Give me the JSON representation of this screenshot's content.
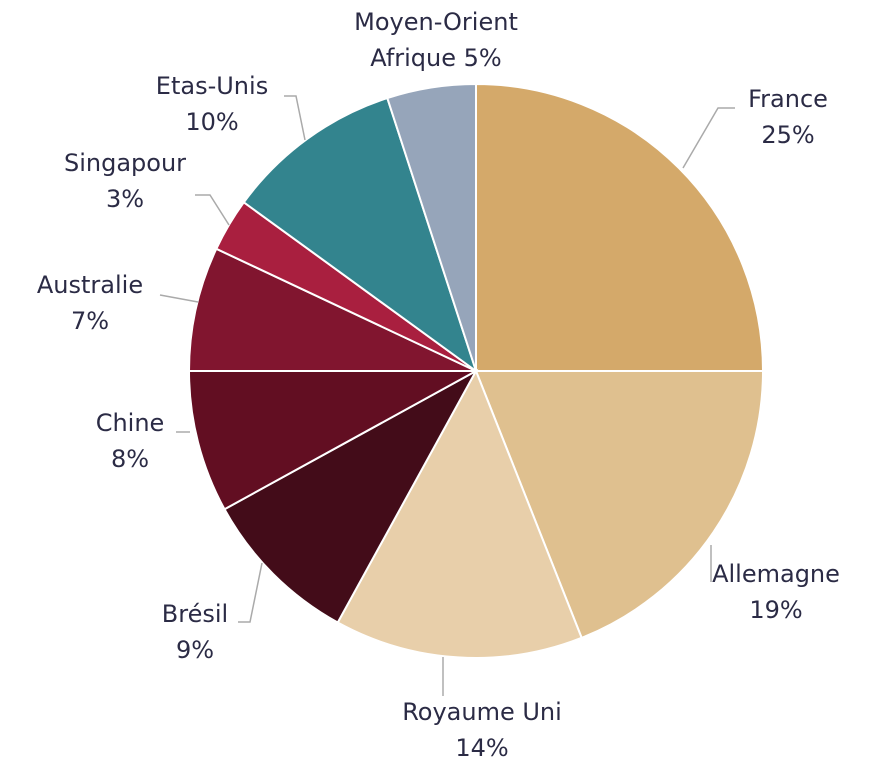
{
  "chart_data": {
    "type": "pie",
    "categories": [
      "France",
      "Allemagne",
      "Royaume Uni",
      "Brésil",
      "Chine",
      "Australie",
      "Singapour",
      "Etas-Unis",
      "Moyen-Orient Afrique"
    ],
    "values": [
      25,
      19,
      14,
      9,
      8,
      7,
      3,
      10,
      5
    ],
    "value_labels": [
      "25%",
      "19%",
      "14%",
      "9%",
      "8%",
      "7%",
      "3%",
      "10%",
      "5%"
    ],
    "colors": [
      "#d4a96a",
      "#dfc08f",
      "#e8cfaa",
      "#430c19",
      "#620e22",
      "#81152f",
      "#a91f3f",
      "#33848e",
      "#96a5ba"
    ]
  }
}
